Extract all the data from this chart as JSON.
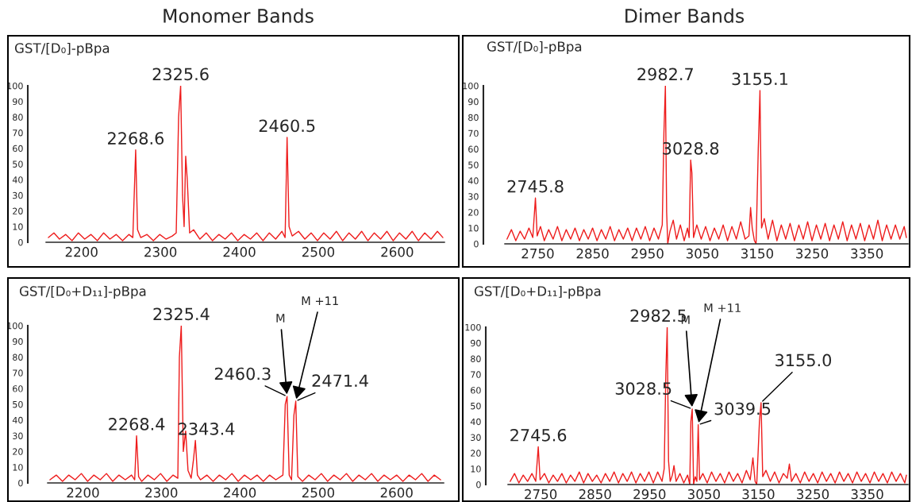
{
  "chart_data": [
    {
      "type": "line",
      "title": "Monomer Bands",
      "subtitle": "GST/[D₀]-pBpa",
      "xlim": [
        2155,
        2660
      ],
      "xticks": [
        2200,
        2300,
        2400,
        2500,
        2600
      ],
      "ylim": [
        0,
        100
      ],
      "yticks": [
        0,
        10,
        20,
        30,
        40,
        50,
        60,
        70,
        80,
        90,
        100
      ],
      "series": [
        {
          "color": "#ee1c1c",
          "x": [
            2158,
            2165,
            2172,
            2180,
            2188,
            2196,
            2204,
            2212,
            2220,
            2228,
            2236,
            2244,
            2252,
            2260,
            2265,
            2268.6,
            2271,
            2275,
            2283,
            2291,
            2299,
            2307,
            2315,
            2320,
            2323,
            2325.6,
            2328,
            2330,
            2332,
            2334,
            2337,
            2342,
            2350,
            2358,
            2366,
            2374,
            2382,
            2390,
            2398,
            2406,
            2414,
            2422,
            2430,
            2438,
            2446,
            2454,
            2458,
            2460.5,
            2463,
            2467,
            2475,
            2483,
            2491,
            2499,
            2507,
            2515,
            2523,
            2531,
            2539,
            2547,
            2555,
            2563,
            2571,
            2579,
            2587,
            2595,
            2603,
            2611,
            2619,
            2627,
            2635,
            2643,
            2651,
            2658
          ],
          "values": [
            3,
            6,
            2,
            5,
            1,
            6,
            2,
            5,
            1,
            6,
            2,
            5,
            1,
            5,
            3,
            59,
            8,
            3,
            5,
            1,
            5,
            2,
            4,
            6,
            80,
            100,
            30,
            10,
            55,
            40,
            6,
            8,
            2,
            6,
            1,
            5,
            2,
            6,
            1,
            5,
            2,
            6,
            1,
            6,
            2,
            7,
            3,
            67,
            10,
            4,
            7,
            2,
            6,
            1,
            6,
            2,
            7,
            1,
            6,
            2,
            7,
            1,
            6,
            2,
            7,
            1,
            6,
            2,
            7,
            1,
            6,
            2,
            7,
            3
          ]
        }
      ],
      "annotations": [
        {
          "text": "2325.6",
          "x": 2325.6,
          "y": 100
        },
        {
          "text": "2268.6",
          "x": 2268.6,
          "y": 59
        },
        {
          "text": "2460.5",
          "x": 2460.5,
          "y": 67
        }
      ]
    },
    {
      "type": "line",
      "title": "Dimer Bands",
      "subtitle": "GST/[D₀]-pBpa",
      "xlim": [
        2690,
        3425
      ],
      "xticks": [
        2750,
        2850,
        2950,
        3050,
        3150,
        3250,
        3350
      ],
      "ylim": [
        0,
        100
      ],
      "yticks": [
        0,
        10,
        20,
        30,
        40,
        50,
        60,
        70,
        80,
        90,
        100
      ],
      "series": [
        {
          "color": "#ee1c1c",
          "x": [
            2694,
            2702,
            2710,
            2718,
            2726,
            2734,
            2741,
            2745.8,
            2749,
            2755,
            2762,
            2770,
            2778,
            2786,
            2794,
            2802,
            2810,
            2818,
            2826,
            2834,
            2842,
            2850,
            2858,
            2866,
            2874,
            2882,
            2890,
            2898,
            2906,
            2914,
            2922,
            2930,
            2938,
            2946,
            2954,
            2962,
            2970,
            2977,
            2980,
            2982.7,
            2985,
            2987,
            2991,
            2997,
            3003,
            3010,
            3017,
            3023,
            3026,
            3028.8,
            3031,
            3034,
            3040,
            3048,
            3056,
            3064,
            3072,
            3080,
            3088,
            3096,
            3104,
            3112,
            3120,
            3128,
            3135,
            3138,
            3141,
            3145,
            3148,
            3152,
            3155.1,
            3158,
            3163,
            3170,
            3178,
            3186,
            3194,
            3202,
            3210,
            3218,
            3226,
            3234,
            3242,
            3250,
            3258,
            3266,
            3274,
            3282,
            3290,
            3298,
            3306,
            3314,
            3322,
            3330,
            3338,
            3346,
            3354,
            3362,
            3370,
            3378,
            3386,
            3394,
            3402,
            3410,
            3418,
            3422
          ],
          "values": [
            3,
            9,
            2,
            8,
            3,
            10,
            4,
            29,
            5,
            11,
            2,
            9,
            3,
            11,
            2,
            9,
            3,
            10,
            2,
            9,
            3,
            10,
            2,
            9,
            3,
            11,
            2,
            9,
            3,
            10,
            2,
            10,
            3,
            11,
            2,
            10,
            3,
            12,
            70,
            100,
            20,
            0,
            8,
            15,
            3,
            12,
            2,
            10,
            4,
            53,
            45,
            4,
            12,
            3,
            11,
            2,
            10,
            3,
            12,
            2,
            11,
            3,
            14,
            3,
            5,
            23,
            10,
            2,
            0,
            60,
            97,
            10,
            16,
            3,
            15,
            2,
            12,
            3,
            13,
            2,
            12,
            3,
            14,
            2,
            12,
            3,
            13,
            2,
            12,
            3,
            14,
            2,
            12,
            3,
            13,
            2,
            12,
            3,
            15,
            2,
            12,
            3,
            12,
            3,
            11,
            4
          ]
        }
      ],
      "annotations": [
        {
          "text": "2982.7",
          "x": 2982.7,
          "y": 100
        },
        {
          "text": "3155.1",
          "x": 3155.1,
          "y": 97
        },
        {
          "text": "3028.8",
          "x": 3028.8,
          "y": 53
        },
        {
          "text": "2745.8",
          "x": 2745.8,
          "y": 29
        }
      ]
    },
    {
      "type": "line",
      "subtitle": "GST/[D₀+D₁₁]-pBpa",
      "xlim": [
        2155,
        2660
      ],
      "xticks": [
        2200,
        2300,
        2400,
        2500,
        2600
      ],
      "ylim": [
        0,
        100
      ],
      "yticks": [
        0,
        10,
        20,
        30,
        40,
        50,
        60,
        70,
        80,
        90,
        100
      ],
      "series": [
        {
          "color": "#ee1c1c",
          "x": [
            2158,
            2166,
            2174,
            2182,
            2190,
            2198,
            2206,
            2214,
            2222,
            2230,
            2238,
            2246,
            2254,
            2262,
            2266,
            2268.4,
            2271,
            2275,
            2283,
            2291,
            2299,
            2307,
            2315,
            2321,
            2323,
            2325.4,
            2328,
            2331,
            2334,
            2338,
            2341,
            2343.4,
            2346,
            2350,
            2358,
            2366,
            2374,
            2382,
            2390,
            2398,
            2406,
            2414,
            2422,
            2430,
            2438,
            2446,
            2455,
            2458,
            2460.3,
            2463,
            2466,
            2469,
            2471.4,
            2474,
            2480,
            2488,
            2496,
            2504,
            2512,
            2520,
            2528,
            2536,
            2544,
            2552,
            2560,
            2568,
            2576,
            2584,
            2592,
            2600,
            2608,
            2616,
            2624,
            2632,
            2640,
            2648,
            2656
          ],
          "values": [
            2,
            5,
            1,
            5,
            2,
            6,
            1,
            5,
            2,
            6,
            1,
            5,
            2,
            5,
            2,
            30,
            4,
            1,
            5,
            2,
            6,
            1,
            5,
            3,
            80,
            100,
            20,
            33,
            8,
            3,
            15,
            27,
            5,
            2,
            5,
            1,
            5,
            2,
            6,
            1,
            5,
            2,
            5,
            1,
            5,
            2,
            5,
            50,
            55,
            5,
            2,
            43,
            52,
            4,
            1,
            5,
            2,
            6,
            1,
            5,
            2,
            6,
            1,
            5,
            2,
            6,
            1,
            5,
            2,
            5,
            1,
            5,
            2,
            6,
            1,
            5,
            2
          ]
        }
      ],
      "annotations": [
        {
          "text": "2325.4",
          "x": 2325.4,
          "y": 100
        },
        {
          "text": "2268.4",
          "x": 2268.4,
          "y": 30
        },
        {
          "text": "2343.4",
          "x": 2343.4,
          "y": 27
        },
        {
          "text": "2460.3",
          "x": 2460.3,
          "y": 55
        },
        {
          "text": "2471.4",
          "x": 2471.4,
          "y": 52
        },
        {
          "text": "M",
          "x": 2460.3,
          "y": 55
        },
        {
          "text": "M +11",
          "x": 2471.4,
          "y": 52
        }
      ]
    },
    {
      "type": "line",
      "subtitle": "GST/[D₀+D₁₁]-pBpa",
      "xlim": [
        2690,
        3425
      ],
      "xticks": [
        2750,
        2850,
        2950,
        3050,
        3150,
        3250,
        3350
      ],
      "ylim": [
        0,
        100
      ],
      "yticks": [
        0,
        10,
        20,
        30,
        40,
        50,
        60,
        70,
        80,
        90,
        100
      ],
      "series": [
        {
          "color": "#ee1c1c",
          "x": [
            2694,
            2702,
            2710,
            2718,
            2726,
            2734,
            2741,
            2745.6,
            2749,
            2757,
            2765,
            2773,
            2781,
            2789,
            2797,
            2805,
            2813,
            2821,
            2829,
            2837,
            2845,
            2853,
            2861,
            2869,
            2877,
            2885,
            2893,
            2901,
            2909,
            2917,
            2925,
            2933,
            2941,
            2949,
            2957,
            2965,
            2973,
            2977,
            2980,
            2982.5,
            2985,
            2988,
            2992,
            2995,
            2999,
            3006,
            3013,
            3020,
            3024,
            3026,
            3028.5,
            3031,
            3034,
            3037,
            3039.5,
            3042,
            3048,
            3056,
            3064,
            3072,
            3080,
            3088,
            3096,
            3104,
            3112,
            3120,
            3128,
            3135,
            3140,
            3144,
            3147,
            3152,
            3155.0,
            3158,
            3164,
            3172,
            3180,
            3188,
            3196,
            3203,
            3207,
            3211,
            3219,
            3227,
            3235,
            3243,
            3251,
            3259,
            3267,
            3275,
            3283,
            3291,
            3299,
            3307,
            3315,
            3323,
            3331,
            3339,
            3347,
            3355,
            3363,
            3371,
            3379,
            3387,
            3395,
            3403,
            3411,
            3419,
            3422
          ],
          "values": [
            2,
            7,
            1,
            6,
            2,
            7,
            2,
            24,
            3,
            7,
            1,
            6,
            2,
            7,
            1,
            6,
            2,
            8,
            1,
            7,
            2,
            6,
            1,
            7,
            2,
            8,
            1,
            7,
            2,
            8,
            1,
            7,
            2,
            8,
            1,
            8,
            2,
            10,
            70,
            100,
            15,
            2,
            6,
            12,
            2,
            7,
            1,
            6,
            0,
            40,
            48,
            0,
            5,
            2,
            38,
            3,
            7,
            1,
            8,
            2,
            7,
            1,
            8,
            2,
            7,
            1,
            9,
            3,
            17,
            2,
            0,
            40,
            52,
            5,
            9,
            2,
            8,
            1,
            7,
            4,
            13,
            2,
            7,
            1,
            8,
            2,
            7,
            1,
            8,
            2,
            7,
            1,
            8,
            2,
            7,
            1,
            8,
            2,
            7,
            1,
            8,
            2,
            7,
            1,
            8,
            2,
            7,
            1,
            6
          ]
        }
      ],
      "annotations": [
        {
          "text": "2982.5",
          "x": 2982.5,
          "y": 100
        },
        {
          "text": "2745.6",
          "x": 2745.6,
          "y": 24
        },
        {
          "text": "3028.5",
          "x": 3028.5,
          "y": 48
        },
        {
          "text": "3039.5",
          "x": 3039.5,
          "y": 38
        },
        {
          "text": "3155.0",
          "x": 3155.0,
          "y": 52
        },
        {
          "text": "M",
          "x": 3028.5,
          "y": 48
        },
        {
          "text": "M +11",
          "x": 3039.5,
          "y": 38
        }
      ]
    }
  ]
}
